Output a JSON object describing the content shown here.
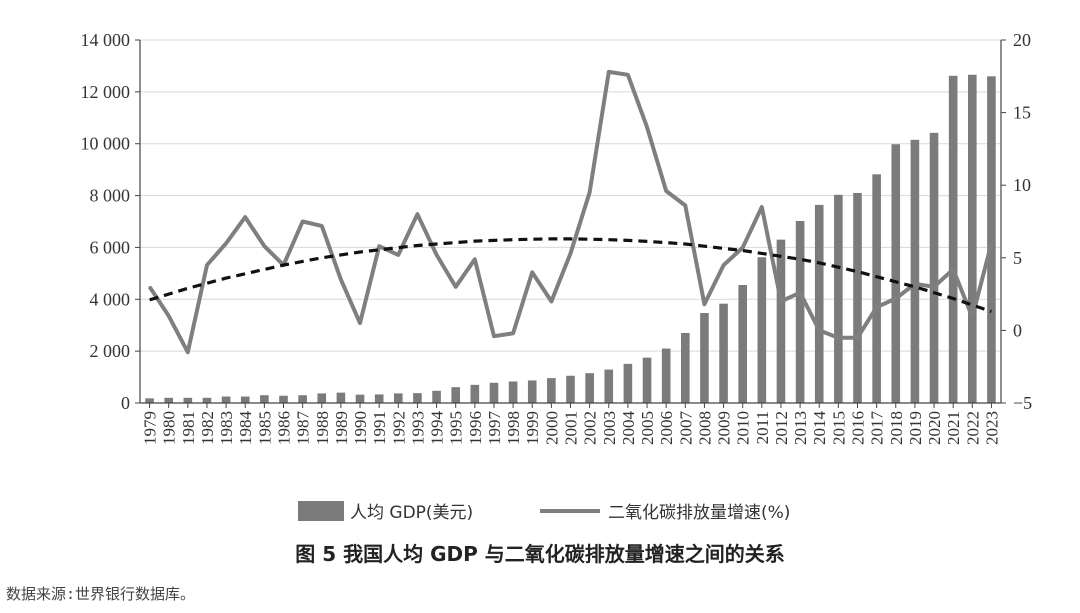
{
  "caption": "图 5  我国人均 GDP 与二氧化碳排放量增速之间的关系",
  "source": "数据来源:世界银行数据库。",
  "chart_data": {
    "type": "bar+line",
    "categories": [
      "1979",
      "1980",
      "1981",
      "1982",
      "1983",
      "1984",
      "1985",
      "1986",
      "1987",
      "1988",
      "1989",
      "1990",
      "1991",
      "1992",
      "1993",
      "1994",
      "1995",
      "1996",
      "1997",
      "1998",
      "1999",
      "2000",
      "2001",
      "2002",
      "2003",
      "2004",
      "2005",
      "2006",
      "2007",
      "2008",
      "2009",
      "2010",
      "2011",
      "2012",
      "2013",
      "2014",
      "2015",
      "2016",
      "2017",
      "2018",
      "2019",
      "2020",
      "2021",
      "2022",
      "2023"
    ],
    "y_left": {
      "ylim": [
        0,
        14000
      ],
      "ticks": [
        0,
        2000,
        4000,
        6000,
        8000,
        10000,
        12000,
        14000
      ],
      "tick_labels": [
        "0",
        "2 000",
        "4 000",
        "6 000",
        "8 000",
        "10 000",
        "12 000",
        "14 000"
      ]
    },
    "y_right": {
      "ylim": [
        -5,
        20
      ],
      "ticks": [
        -5,
        0,
        5,
        10,
        15,
        20
      ],
      "tick_labels": [
        "−5",
        "0",
        "5",
        "10",
        "15",
        "20"
      ]
    },
    "series": [
      {
        "name": "人均 GDP(美元)",
        "type": "bar",
        "axis": "left",
        "color": "#7b7b7b",
        "values": [
          180,
          200,
          200,
          200,
          250,
          250,
          300,
          280,
          300,
          370,
          400,
          320,
          330,
          370,
          380,
          470,
          610,
          700,
          780,
          830,
          870,
          960,
          1050,
          1150,
          1290,
          1510,
          1750,
          2100,
          2700,
          3470,
          3830,
          4550,
          5620,
          6300,
          7020,
          7640,
          8030,
          8100,
          8820,
          9980,
          10150,
          10420,
          12620,
          12660,
          12600
        ]
      },
      {
        "name": "二氧化碳排放量增速(%)",
        "type": "line",
        "axis": "right",
        "color": "#7f7f7f",
        "values": [
          3.0,
          1.0,
          -1.5,
          4.5,
          6.0,
          7.8,
          5.8,
          4.5,
          7.5,
          7.2,
          3.5,
          0.5,
          5.8,
          5.2,
          8.0,
          5.2,
          3.0,
          4.9,
          -0.4,
          -0.2,
          4.0,
          2.0,
          5.3,
          9.5,
          17.8,
          17.6,
          14.0,
          9.6,
          8.6,
          1.8,
          4.5,
          5.7,
          8.5,
          2.0,
          2.6,
          0.0,
          -0.5,
          -0.5,
          1.6,
          2.2,
          3.2,
          3.0,
          4.2,
          0.9,
          6.0
        ]
      }
    ],
    "trend": {
      "type": "quadratic",
      "style": "dashed",
      "color": "#111111",
      "axis": "right",
      "values": [
        2.1,
        2.5,
        2.9,
        3.25,
        3.6,
        3.9,
        4.2,
        4.5,
        4.75,
        5.0,
        5.2,
        5.4,
        5.55,
        5.7,
        5.85,
        5.95,
        6.05,
        6.15,
        6.2,
        6.25,
        6.28,
        6.3,
        6.3,
        6.28,
        6.25,
        6.2,
        6.13,
        6.05,
        5.95,
        5.8,
        5.65,
        5.5,
        5.3,
        5.1,
        4.9,
        4.65,
        4.35,
        4.05,
        3.7,
        3.35,
        3.0,
        2.6,
        2.2,
        1.75,
        1.3
      ]
    }
  }
}
